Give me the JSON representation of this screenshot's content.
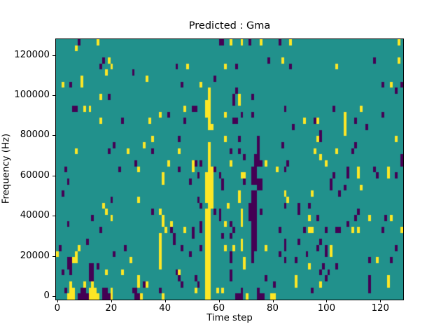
{
  "chart_data": {
    "type": "heatmap",
    "title": "Predicted : Gma",
    "xlabel": "Time step",
    "ylabel": "Frequency (Hz)",
    "x_ticks": [
      0,
      20,
      40,
      60,
      80,
      100,
      120
    ],
    "y_ticks": [
      0,
      20000,
      40000,
      60000,
      80000,
      100000,
      120000
    ],
    "x_range": [
      0,
      128
    ],
    "y_range": [
      0,
      128000
    ],
    "grid_cols": 128,
    "grid_rows": 43,
    "legend": "none",
    "grid": "off",
    "colors": {
      "mid": "#21918c",
      "high": "#fde725",
      "low": "#440154",
      "spine": "#000000",
      "background": "#ffffff"
    },
    "cells_note": "cells as [col,row]; row 0 = top (highest frequency); all other cells are mid (teal)",
    "cells_yellow": [
      [
        15,
        0
      ],
      [
        64,
        0
      ],
      [
        68,
        0
      ],
      [
        75,
        0
      ],
      [
        86,
        0
      ],
      [
        126,
        0
      ],
      [
        7,
        1
      ],
      [
        19,
        3
      ],
      [
        83,
        3
      ],
      [
        126,
        3
      ],
      [
        20,
        4
      ],
      [
        48,
        4
      ],
      [
        62,
        4
      ],
      [
        103,
        4
      ],
      [
        18,
        5
      ],
      [
        9,
        6
      ],
      [
        33,
        6
      ],
      [
        2,
        7
      ],
      [
        9,
        7
      ],
      [
        53,
        7
      ],
      [
        123,
        7
      ],
      [
        56,
        8
      ],
      [
        16,
        9
      ],
      [
        56,
        9
      ],
      [
        67,
        9
      ],
      [
        55,
        10
      ],
      [
        56,
        10
      ],
      [
        67,
        10
      ],
      [
        10,
        11
      ],
      [
        12,
        11
      ],
      [
        47,
        11
      ],
      [
        55,
        11
      ],
      [
        56,
        11
      ],
      [
        112,
        11
      ],
      [
        38,
        12
      ],
      [
        55,
        12
      ],
      [
        56,
        12
      ],
      [
        62,
        12
      ],
      [
        106,
        12
      ],
      [
        16,
        13
      ],
      [
        34,
        13
      ],
      [
        56,
        13
      ],
      [
        91,
        13
      ],
      [
        96,
        13
      ],
      [
        106,
        13
      ],
      [
        56,
        14
      ],
      [
        57,
        14
      ],
      [
        106,
        14
      ],
      [
        106,
        15
      ],
      [
        35,
        16
      ],
      [
        62,
        16
      ],
      [
        96,
        16
      ],
      [
        125,
        16
      ],
      [
        32,
        17
      ],
      [
        56,
        17
      ],
      [
        7,
        18
      ],
      [
        26,
        18
      ],
      [
        45,
        18
      ],
      [
        56,
        18
      ],
      [
        95,
        18
      ],
      [
        103,
        18
      ],
      [
        56,
        19
      ],
      [
        97,
        19
      ],
      [
        41,
        20
      ],
      [
        50,
        20
      ],
      [
        56,
        20
      ],
      [
        64,
        20
      ],
      [
        77,
        20
      ],
      [
        99,
        20
      ],
      [
        30,
        21
      ],
      [
        50,
        21
      ],
      [
        56,
        21
      ],
      [
        57,
        21
      ],
      [
        81,
        21
      ],
      [
        111,
        21
      ],
      [
        122,
        21
      ],
      [
        39,
        22
      ],
      [
        55,
        22
      ],
      [
        56,
        22
      ],
      [
        57,
        22
      ],
      [
        68,
        22
      ],
      [
        69,
        22
      ],
      [
        111,
        22
      ],
      [
        122,
        22
      ],
      [
        39,
        23
      ],
      [
        55,
        23
      ],
      [
        56,
        23
      ],
      [
        57,
        23
      ],
      [
        55,
        24
      ],
      [
        56,
        24
      ],
      [
        57,
        24
      ],
      [
        112,
        24
      ],
      [
        55,
        25
      ],
      [
        56,
        25
      ],
      [
        57,
        25
      ],
      [
        67,
        25
      ],
      [
        84,
        25
      ],
      [
        94,
        25
      ],
      [
        30,
        26
      ],
      [
        55,
        26
      ],
      [
        56,
        26
      ],
      [
        57,
        26
      ],
      [
        67,
        26
      ],
      [
        85,
        26
      ],
      [
        17,
        27
      ],
      [
        56,
        27
      ],
      [
        57,
        27
      ],
      [
        63,
        27
      ],
      [
        18,
        28
      ],
      [
        38,
        28
      ],
      [
        55,
        28
      ],
      [
        56,
        28
      ],
      [
        68,
        28
      ],
      [
        20,
        29
      ],
      [
        39,
        29
      ],
      [
        55,
        29
      ],
      [
        56,
        29
      ],
      [
        68,
        29
      ],
      [
        93,
        29
      ],
      [
        115,
        29
      ],
      [
        123,
        29
      ],
      [
        39,
        30
      ],
      [
        42,
        30
      ],
      [
        55,
        30
      ],
      [
        56,
        30
      ],
      [
        62,
        30
      ],
      [
        68,
        30
      ],
      [
        40,
        31
      ],
      [
        47,
        31
      ],
      [
        55,
        31
      ],
      [
        56,
        31
      ],
      [
        93,
        31
      ],
      [
        94,
        31
      ],
      [
        109,
        31
      ],
      [
        111,
        31
      ],
      [
        127,
        31
      ],
      [
        38,
        32
      ],
      [
        55,
        32
      ],
      [
        56,
        32
      ],
      [
        38,
        33
      ],
      [
        55,
        33
      ],
      [
        56,
        33
      ],
      [
        68,
        33
      ],
      [
        8,
        34
      ],
      [
        38,
        34
      ],
      [
        55,
        34
      ],
      [
        56,
        34
      ],
      [
        62,
        34
      ],
      [
        65,
        34
      ],
      [
        68,
        34
      ],
      [
        77,
        34
      ],
      [
        101,
        34
      ],
      [
        0,
        35
      ],
      [
        7,
        35
      ],
      [
        38,
        35
      ],
      [
        55,
        35
      ],
      [
        56,
        35
      ],
      [
        101,
        35
      ],
      [
        6,
        36
      ],
      [
        7,
        36
      ],
      [
        27,
        36
      ],
      [
        38,
        36
      ],
      [
        55,
        36
      ],
      [
        56,
        36
      ],
      [
        69,
        36
      ],
      [
        118,
        36
      ],
      [
        38,
        37
      ],
      [
        55,
        37
      ],
      [
        56,
        37
      ],
      [
        69,
        37
      ],
      [
        93,
        37
      ],
      [
        18,
        38
      ],
      [
        24,
        38
      ],
      [
        45,
        38
      ],
      [
        55,
        38
      ],
      [
        56,
        38
      ],
      [
        30,
        39
      ],
      [
        55,
        39
      ],
      [
        56,
        39
      ],
      [
        88,
        39
      ],
      [
        122,
        39
      ],
      [
        5,
        40
      ],
      [
        10,
        40
      ],
      [
        13,
        40
      ],
      [
        30,
        40
      ],
      [
        33,
        40
      ],
      [
        55,
        40
      ],
      [
        56,
        40
      ],
      [
        88,
        40
      ],
      [
        97,
        40
      ],
      [
        122,
        40
      ],
      [
        5,
        41
      ],
      [
        6,
        41
      ],
      [
        12,
        41
      ],
      [
        13,
        41
      ],
      [
        14,
        41
      ],
      [
        20,
        41
      ],
      [
        51,
        41
      ],
      [
        55,
        41
      ],
      [
        56,
        41
      ],
      [
        59,
        41
      ],
      [
        61,
        41
      ],
      [
        4,
        42
      ],
      [
        5,
        42
      ],
      [
        6,
        42
      ],
      [
        12,
        42
      ],
      [
        13,
        42
      ],
      [
        14,
        42
      ],
      [
        15,
        42
      ],
      [
        20,
        42
      ],
      [
        31,
        42
      ],
      [
        39,
        42
      ],
      [
        55,
        42
      ],
      [
        56,
        42
      ],
      [
        70,
        42
      ],
      [
        79,
        42
      ],
      [
        80,
        42
      ]
    ],
    "cells_dark": [
      [
        8,
        0
      ],
      [
        60,
        0
      ],
      [
        61,
        0
      ],
      [
        71,
        0
      ],
      [
        82,
        0
      ],
      [
        17,
        3
      ],
      [
        78,
        3
      ],
      [
        117,
        3
      ],
      [
        16,
        4
      ],
      [
        44,
        4
      ],
      [
        66,
        4
      ],
      [
        86,
        4
      ],
      [
        28,
        5
      ],
      [
        58,
        6
      ],
      [
        5,
        7
      ],
      [
        46,
        7
      ],
      [
        120,
        7
      ],
      [
        127,
        7
      ],
      [
        66,
        8
      ],
      [
        125,
        8
      ],
      [
        19,
        9
      ],
      [
        65,
        9
      ],
      [
        72,
        9
      ],
      [
        65,
        10
      ],
      [
        6,
        11
      ],
      [
        7,
        11
      ],
      [
        50,
        11
      ],
      [
        51,
        11
      ],
      [
        84,
        11
      ],
      [
        102,
        11
      ],
      [
        41,
        12
      ],
      [
        68,
        12
      ],
      [
        72,
        12
      ],
      [
        120,
        12
      ],
      [
        24,
        13
      ],
      [
        47,
        13
      ],
      [
        65,
        13
      ],
      [
        66,
        13
      ],
      [
        95,
        13
      ],
      [
        110,
        13
      ],
      [
        87,
        14
      ],
      [
        114,
        14
      ],
      [
        97,
        15
      ],
      [
        45,
        16
      ],
      [
        67,
        16
      ],
      [
        74,
        16
      ],
      [
        97,
        16
      ],
      [
        21,
        17
      ],
      [
        74,
        17
      ],
      [
        83,
        17
      ],
      [
        110,
        17
      ],
      [
        19,
        18
      ],
      [
        35,
        18
      ],
      [
        64,
        18
      ],
      [
        67,
        18
      ],
      [
        74,
        18
      ],
      [
        109,
        18
      ],
      [
        69,
        19
      ],
      [
        73,
        19
      ],
      [
        74,
        19
      ],
      [
        127,
        19
      ],
      [
        29,
        20
      ],
      [
        51,
        20
      ],
      [
        53,
        20
      ],
      [
        73,
        20
      ],
      [
        74,
        20
      ],
      [
        75,
        20
      ],
      [
        85,
        20
      ],
      [
        127,
        20
      ],
      [
        3,
        21
      ],
      [
        23,
        21
      ],
      [
        45,
        21
      ],
      [
        58,
        21
      ],
      [
        72,
        21
      ],
      [
        73,
        21
      ],
      [
        84,
        21
      ],
      [
        107,
        21
      ],
      [
        117,
        21
      ],
      [
        52,
        22
      ],
      [
        60,
        22
      ],
      [
        72,
        22
      ],
      [
        73,
        22
      ],
      [
        102,
        22
      ],
      [
        107,
        22
      ],
      [
        118,
        22
      ],
      [
        125,
        22
      ],
      [
        4,
        23
      ],
      [
        49,
        23
      ],
      [
        61,
        23
      ],
      [
        69,
        23
      ],
      [
        72,
        23
      ],
      [
        73,
        23
      ],
      [
        74,
        23
      ],
      [
        75,
        23
      ],
      [
        101,
        23
      ],
      [
        61,
        24
      ],
      [
        74,
        24
      ],
      [
        75,
        24
      ],
      [
        101,
        24
      ],
      [
        106,
        24
      ],
      [
        2,
        25
      ],
      [
        72,
        25
      ],
      [
        73,
        25
      ],
      [
        104,
        25
      ],
      [
        20,
        26
      ],
      [
        52,
        26
      ],
      [
        72,
        26
      ],
      [
        73,
        26
      ],
      [
        53,
        27
      ],
      [
        71,
        27
      ],
      [
        72,
        27
      ],
      [
        73,
        27
      ],
      [
        84,
        27
      ],
      [
        89,
        27
      ],
      [
        93,
        27
      ],
      [
        35,
        28
      ],
      [
        58,
        28
      ],
      [
        60,
        28
      ],
      [
        71,
        28
      ],
      [
        72,
        28
      ],
      [
        73,
        28
      ],
      [
        75,
        28
      ],
      [
        89,
        28
      ],
      [
        111,
        28
      ],
      [
        13,
        29
      ],
      [
        60,
        29
      ],
      [
        71,
        29
      ],
      [
        72,
        29
      ],
      [
        73,
        29
      ],
      [
        96,
        29
      ],
      [
        110,
        29
      ],
      [
        121,
        29
      ],
      [
        4,
        30
      ],
      [
        53,
        30
      ],
      [
        64,
        30
      ],
      [
        72,
        30
      ],
      [
        73,
        30
      ],
      [
        107,
        30
      ],
      [
        16,
        31
      ],
      [
        42,
        31
      ],
      [
        50,
        31
      ],
      [
        53,
        31
      ],
      [
        65,
        31
      ],
      [
        72,
        31
      ],
      [
        73,
        31
      ],
      [
        82,
        31
      ],
      [
        91,
        31
      ],
      [
        99,
        31
      ],
      [
        103,
        31
      ],
      [
        104,
        31
      ],
      [
        120,
        31
      ],
      [
        43,
        32
      ],
      [
        50,
        32
      ],
      [
        61,
        32
      ],
      [
        64,
        32
      ],
      [
        72,
        32
      ],
      [
        73,
        32
      ],
      [
        11,
        33
      ],
      [
        43,
        33
      ],
      [
        72,
        33
      ],
      [
        73,
        33
      ],
      [
        84,
        33
      ],
      [
        89,
        33
      ],
      [
        97,
        33
      ],
      [
        1,
        34
      ],
      [
        25,
        34
      ],
      [
        46,
        34
      ],
      [
        53,
        34
      ],
      [
        72,
        34
      ],
      [
        73,
        34
      ],
      [
        84,
        34
      ],
      [
        96,
        34
      ],
      [
        99,
        34
      ],
      [
        125,
        34
      ],
      [
        21,
        35
      ],
      [
        49,
        35
      ],
      [
        64,
        35
      ],
      [
        72,
        35
      ],
      [
        82,
        35
      ],
      [
        92,
        35
      ],
      [
        99,
        35
      ],
      [
        4,
        36
      ],
      [
        5,
        36
      ],
      [
        64,
        36
      ],
      [
        72,
        36
      ],
      [
        84,
        36
      ],
      [
        88,
        36
      ],
      [
        115,
        36
      ],
      [
        123,
        36
      ],
      [
        4,
        37
      ],
      [
        5,
        37
      ],
      [
        12,
        37
      ],
      [
        13,
        37
      ],
      [
        15,
        37
      ],
      [
        98,
        37
      ],
      [
        103,
        37
      ],
      [
        2,
        38
      ],
      [
        5,
        38
      ],
      [
        12,
        38
      ],
      [
        13,
        38
      ],
      [
        44,
        38
      ],
      [
        64,
        38
      ],
      [
        97,
        38
      ],
      [
        100,
        38
      ],
      [
        12,
        39
      ],
      [
        13,
        39
      ],
      [
        45,
        39
      ],
      [
        51,
        39
      ],
      [
        64,
        39
      ],
      [
        77,
        39
      ],
      [
        99,
        39
      ],
      [
        115,
        39
      ],
      [
        32,
        40
      ],
      [
        46,
        40
      ],
      [
        52,
        40
      ],
      [
        80,
        40
      ],
      [
        115,
        40
      ],
      [
        3,
        41
      ],
      [
        9,
        41
      ],
      [
        10,
        41
      ],
      [
        17,
        41
      ],
      [
        18,
        41
      ],
      [
        28,
        41
      ],
      [
        29,
        41
      ],
      [
        38,
        41
      ],
      [
        68,
        41
      ],
      [
        74,
        41
      ],
      [
        94,
        41
      ],
      [
        115,
        41
      ],
      [
        8,
        42
      ],
      [
        9,
        42
      ],
      [
        10,
        42
      ],
      [
        11,
        42
      ],
      [
        17,
        42
      ],
      [
        18,
        42
      ],
      [
        19,
        42
      ],
      [
        29,
        42
      ],
      [
        30,
        42
      ],
      [
        66,
        42
      ],
      [
        67,
        42
      ],
      [
        68,
        42
      ],
      [
        74,
        42
      ],
      [
        75,
        42
      ],
      [
        76,
        42
      ]
    ]
  }
}
